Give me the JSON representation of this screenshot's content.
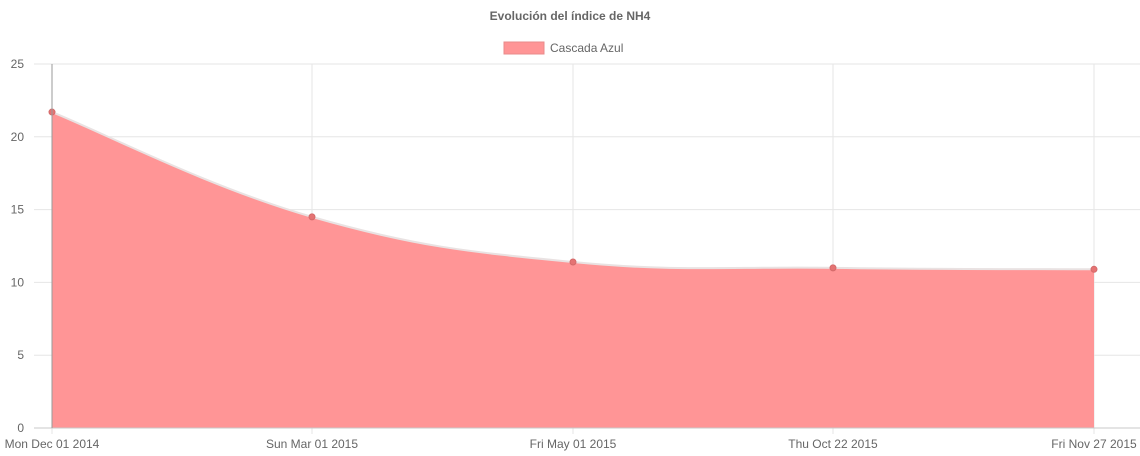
{
  "chart_data": {
    "type": "area",
    "title": "Evolución del índice de NH4",
    "xlabel": "",
    "ylabel": "",
    "x": [
      "Mon Dec 01 2014",
      "Sun Mar 01 2015",
      "Fri May 01 2015",
      "Thu Oct 22 2015",
      "Fri Nov 27 2015"
    ],
    "series": [
      {
        "name": "Cascada Azul",
        "values": [
          21.7,
          14.5,
          11.4,
          11.0,
          10.9
        ],
        "fill_color": "#ff9596",
        "line_color": "#e9e2e2",
        "point_color": "#e57373"
      }
    ],
    "ylim": [
      0,
      25
    ],
    "yticks": [
      "0",
      "5",
      "10",
      "15",
      "20",
      "25"
    ],
    "grid": true,
    "legend_position": "top-center"
  }
}
